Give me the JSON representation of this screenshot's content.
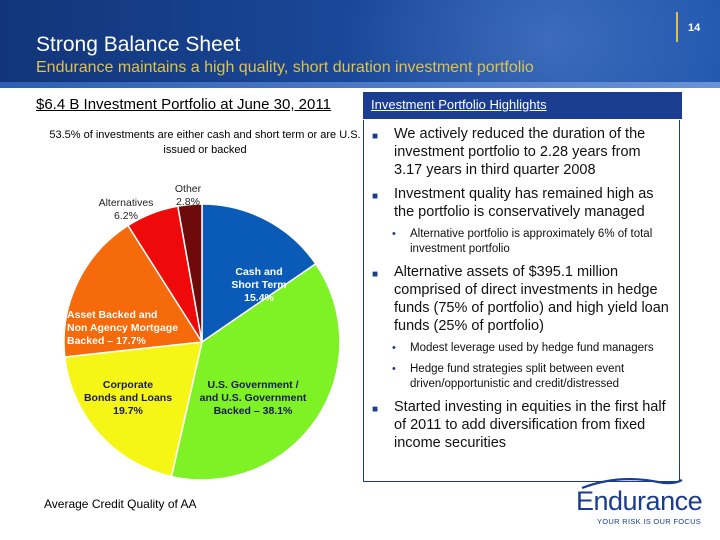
{
  "header": {
    "title": "Strong Balance Sheet",
    "subtitle": "Endurance maintains a high quality, short duration investment portfolio",
    "page_number": "14"
  },
  "left": {
    "title": "$6.4 B Investment Portfolio at June 30, 2011",
    "note": "53.5% of investments are either cash and short term or are U.S. issued or backed",
    "credit_quality": "Average Credit Quality of AA"
  },
  "chart_data": {
    "type": "pie",
    "title": "",
    "slices": [
      {
        "label_lines": [
          "Cash and",
          "Short Term",
          "15.4%"
        ],
        "value": 15.4,
        "color": "#0a5bb8",
        "label_color": "#ffffff"
      },
      {
        "label_lines": [
          "U.S. Government /",
          "and U.S. Government",
          "Backed – 38.1%"
        ],
        "value": 38.1,
        "color": "#7ef224",
        "label_color": "#1a1a50"
      },
      {
        "label_lines": [
          "Corporate",
          "Bonds and Loans",
          "19.7%"
        ],
        "value": 19.7,
        "color": "#f5f516",
        "label_color": "#1a1a50"
      },
      {
        "label_lines": [
          "Asset Backed and",
          "Non Agency Mortgage",
          "Backed – 17.7%"
        ],
        "value": 17.7,
        "color": "#f56a0a",
        "label_color": "#ffffff"
      },
      {
        "label_lines": [
          "Alternatives",
          "6.2%"
        ],
        "value": 6.2,
        "color": "#ee0a0a",
        "label_color": "#222222"
      },
      {
        "label_lines": [
          "Other",
          "2.8%"
        ],
        "value": 2.8,
        "color": "#6e0a0a",
        "label_color": "#222222"
      }
    ]
  },
  "highlights": {
    "title": "Investment Portfolio Highlights",
    "items": [
      {
        "level": 1,
        "text": "We actively reduced the duration of the investment portfolio to 2.28 years from 3.17 years in third quarter 2008"
      },
      {
        "level": 1,
        "text": "Investment quality has remained high as the portfolio is conservatively managed"
      },
      {
        "level": 2,
        "text": "Alternative portfolio is  approximately 6% of total investment portfolio"
      },
      {
        "level": 1,
        "text": "Alternative assets of $395.1 million comprised of direct investments in hedge funds (75% of portfolio) and high yield loan funds (25% of portfolio)"
      },
      {
        "level": 2,
        "text": "Modest leverage used by hedge fund managers"
      },
      {
        "level": 2,
        "text": "Hedge fund strategies split between event driven/opportunistic and credit/distressed"
      },
      {
        "level": 1,
        "text": "Started investing in equities in the first half of 2011 to add diversification from fixed income securities"
      }
    ]
  },
  "logo": {
    "name": "Endurance",
    "tagline": "YOUR RISK IS OUR FOCUS"
  },
  "colors": {
    "header_blue": "#1a3d8f",
    "subtitle_gold": "#e0c24a"
  }
}
